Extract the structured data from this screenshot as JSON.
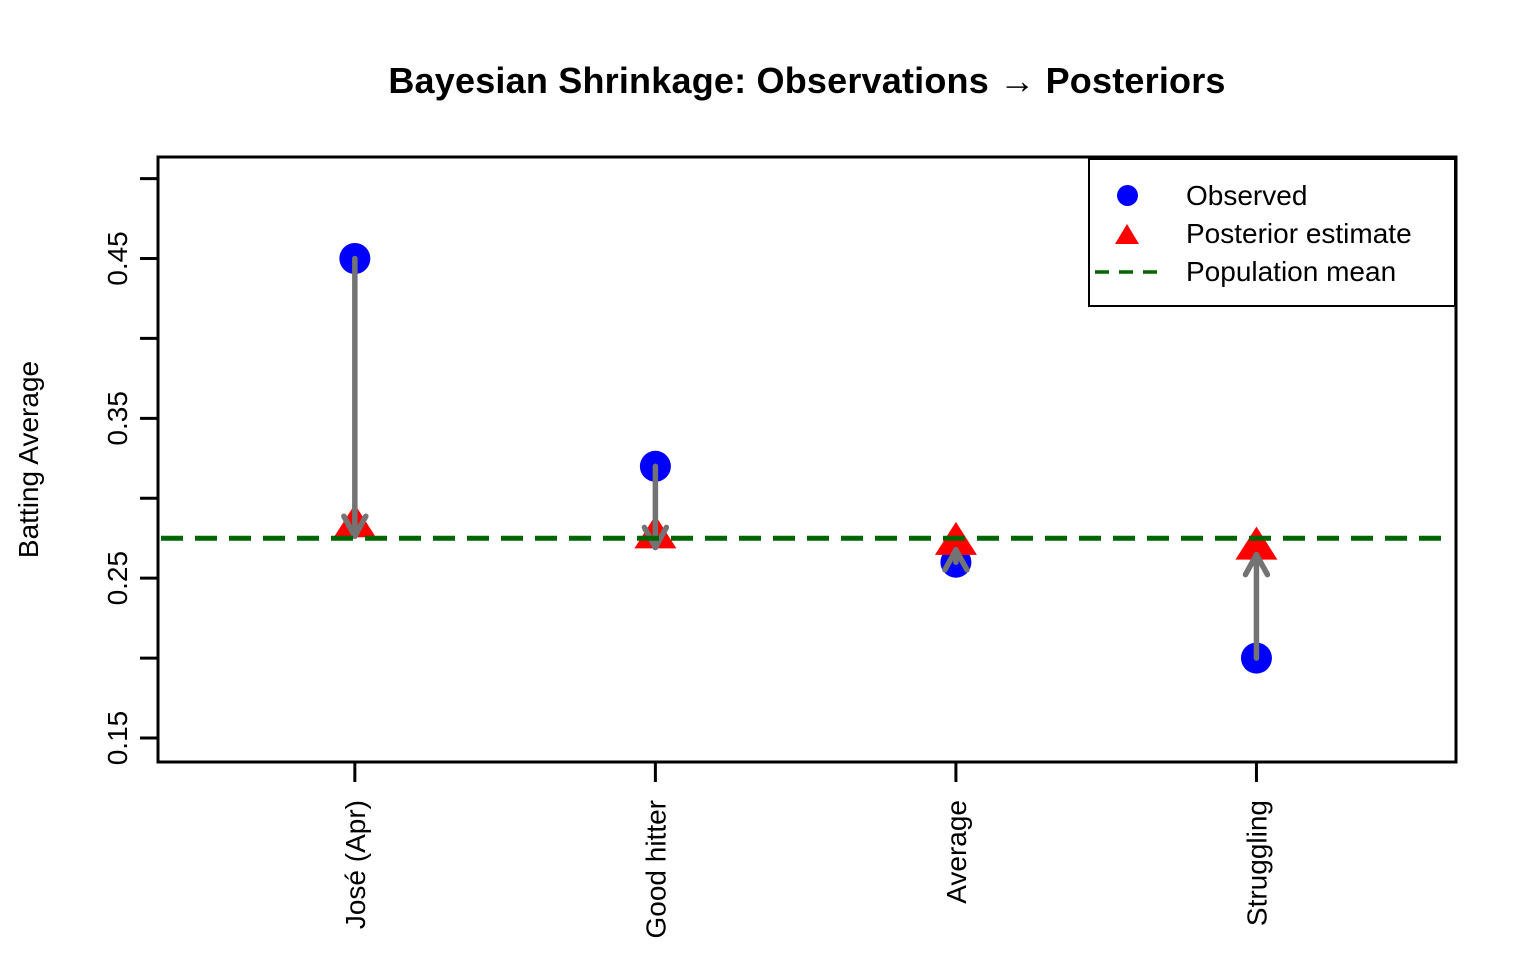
{
  "chart_data": {
    "type": "scatter",
    "title": "Bayesian Shrinkage: Observations → Posteriors",
    "ylabel": "Batting Average",
    "xlabel": "",
    "categories": [
      "José (Apr)",
      "Good hitter",
      "Average",
      "Struggling"
    ],
    "series": [
      {
        "name": "Observed",
        "marker": "circle",
        "color": "#0000FF",
        "values": [
          0.45,
          0.32,
          0.26,
          0.2
        ]
      },
      {
        "name": "Posterior estimate",
        "marker": "triangle",
        "color": "#FF0000",
        "values": [
          0.285,
          0.278,
          0.274,
          0.271
        ]
      }
    ],
    "population_mean": {
      "label": "Population mean",
      "value": 0.275,
      "color": "#006400",
      "line_style": "dashed"
    },
    "shrinkage_arrows": {
      "color": "#737373",
      "from_series": "Observed",
      "to_series": "Posterior estimate"
    },
    "y_ticks": [
      0.15,
      0.2,
      0.25,
      0.3,
      0.35,
      0.4,
      0.45,
      0.5
    ],
    "y_tick_labels": [
      {
        "value": 0.15,
        "label": "0.15"
      },
      {
        "value": 0.25,
        "label": "0.25"
      },
      {
        "value": 0.35,
        "label": "0.35"
      },
      {
        "value": 0.45,
        "label": "0.45"
      }
    ],
    "ylim": [
      0.135,
      0.5135
    ],
    "xlim": [
      0.345,
      4.664
    ],
    "grid": false,
    "legend": {
      "position": "topright",
      "items": [
        "Observed",
        "Posterior estimate",
        "Population mean"
      ]
    }
  }
}
